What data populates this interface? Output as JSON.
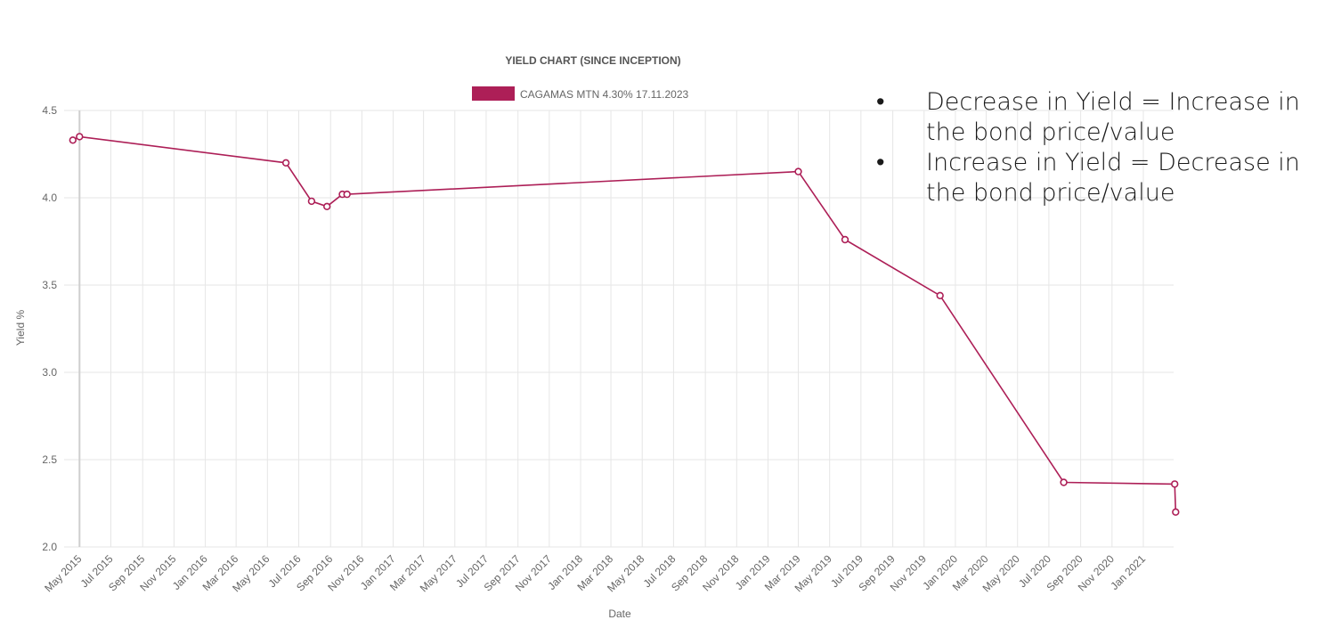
{
  "chart_data": {
    "type": "line",
    "title": "YIELD CHART (SINCE INCEPTION)",
    "xlabel": "Date",
    "ylabel": "Yield %",
    "ylim": [
      2.0,
      4.5
    ],
    "yticks": [
      "2.0",
      "2.5",
      "3.0",
      "3.5",
      "4.0",
      "4.5"
    ],
    "xlim": [
      "2015-04-01",
      "2021-03-01"
    ],
    "xticks": [
      "May 2015",
      "Jul 2015",
      "Sep 2015",
      "Nov 2015",
      "Jan 2016",
      "Mar 2016",
      "May 2016",
      "Jul 2016",
      "Sep 2016",
      "Nov 2016",
      "Jan 2017",
      "Mar 2017",
      "May 2017",
      "Jul 2017",
      "Sep 2017",
      "Nov 2017",
      "Jan 2018",
      "Mar 2018",
      "May 2018",
      "Jul 2018",
      "Sep 2018",
      "Nov 2018",
      "Jan 2019",
      "Mar 2019",
      "May 2019",
      "Jul 2019",
      "Sep 2019",
      "Nov 2019",
      "Jan 2020",
      "Mar 2020",
      "May 2020",
      "Jul 2020",
      "Sep 2020",
      "Nov 2020",
      "Jan 2021"
    ],
    "grid": true,
    "legend": "top-center",
    "series": [
      {
        "name": "CAGAMAS MTN 4.30% 17.11.2023",
        "color": "#ad1f57",
        "x": [
          "2015-04-18",
          "2015-05-01",
          "2016-06-06",
          "2016-07-26",
          "2016-08-25",
          "2016-09-24",
          "2016-10-03",
          "2019-03-01",
          "2019-05-31",
          "2019-12-02",
          "2020-07-30",
          "2021-03-03",
          "2021-03-05"
        ],
        "y": [
          4.33,
          4.35,
          4.2,
          3.98,
          3.95,
          4.02,
          4.02,
          4.15,
          3.76,
          3.44,
          2.37,
          2.36,
          2.2
        ]
      }
    ]
  },
  "notes": [
    {
      "bullet": "•",
      "text": "Decrease in Yield = Increase in the bond price/value"
    },
    {
      "bullet": "•",
      "text": "Increase in Yield = Decrease in the bond price/value"
    }
  ]
}
